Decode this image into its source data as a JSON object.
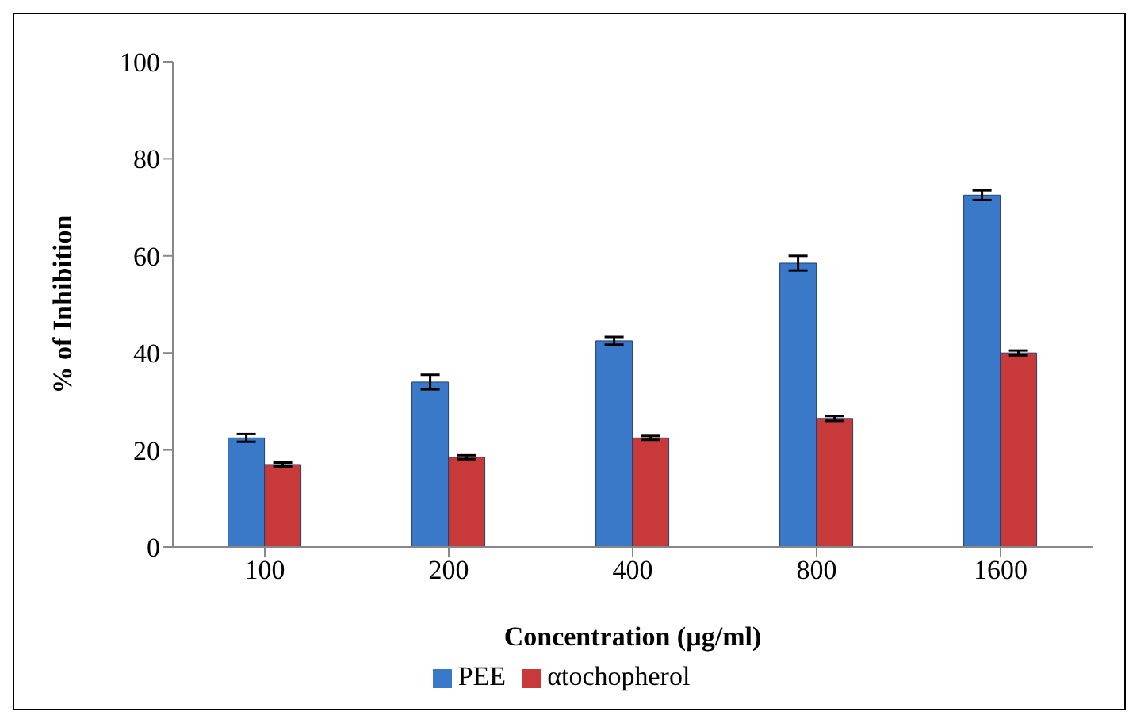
{
  "chart_data": {
    "type": "bar",
    "xlabel": "Concentration (µg/ml)",
    "ylabel": "% of Inhibition",
    "categories": [
      "100",
      "200",
      "400",
      "800",
      "1600"
    ],
    "series": [
      {
        "name": "PEE",
        "color": "#3a78c8",
        "values": [
          22.5,
          34,
          42.5,
          58.5,
          72.5
        ],
        "errors": [
          0.8,
          1.5,
          0.8,
          1.5,
          1
        ]
      },
      {
        "name": "αtochopherol",
        "color": "#c83a3a",
        "values": [
          17,
          18.5,
          22.5,
          26.5,
          40
        ],
        "errors": [
          0.4,
          0.4,
          0.4,
          0.5,
          0.5
        ]
      }
    ],
    "ylim": [
      0,
      100
    ],
    "yticks": [
      0,
      20,
      40,
      60,
      80,
      100
    ],
    "grid": false,
    "legend": "bottom"
  }
}
